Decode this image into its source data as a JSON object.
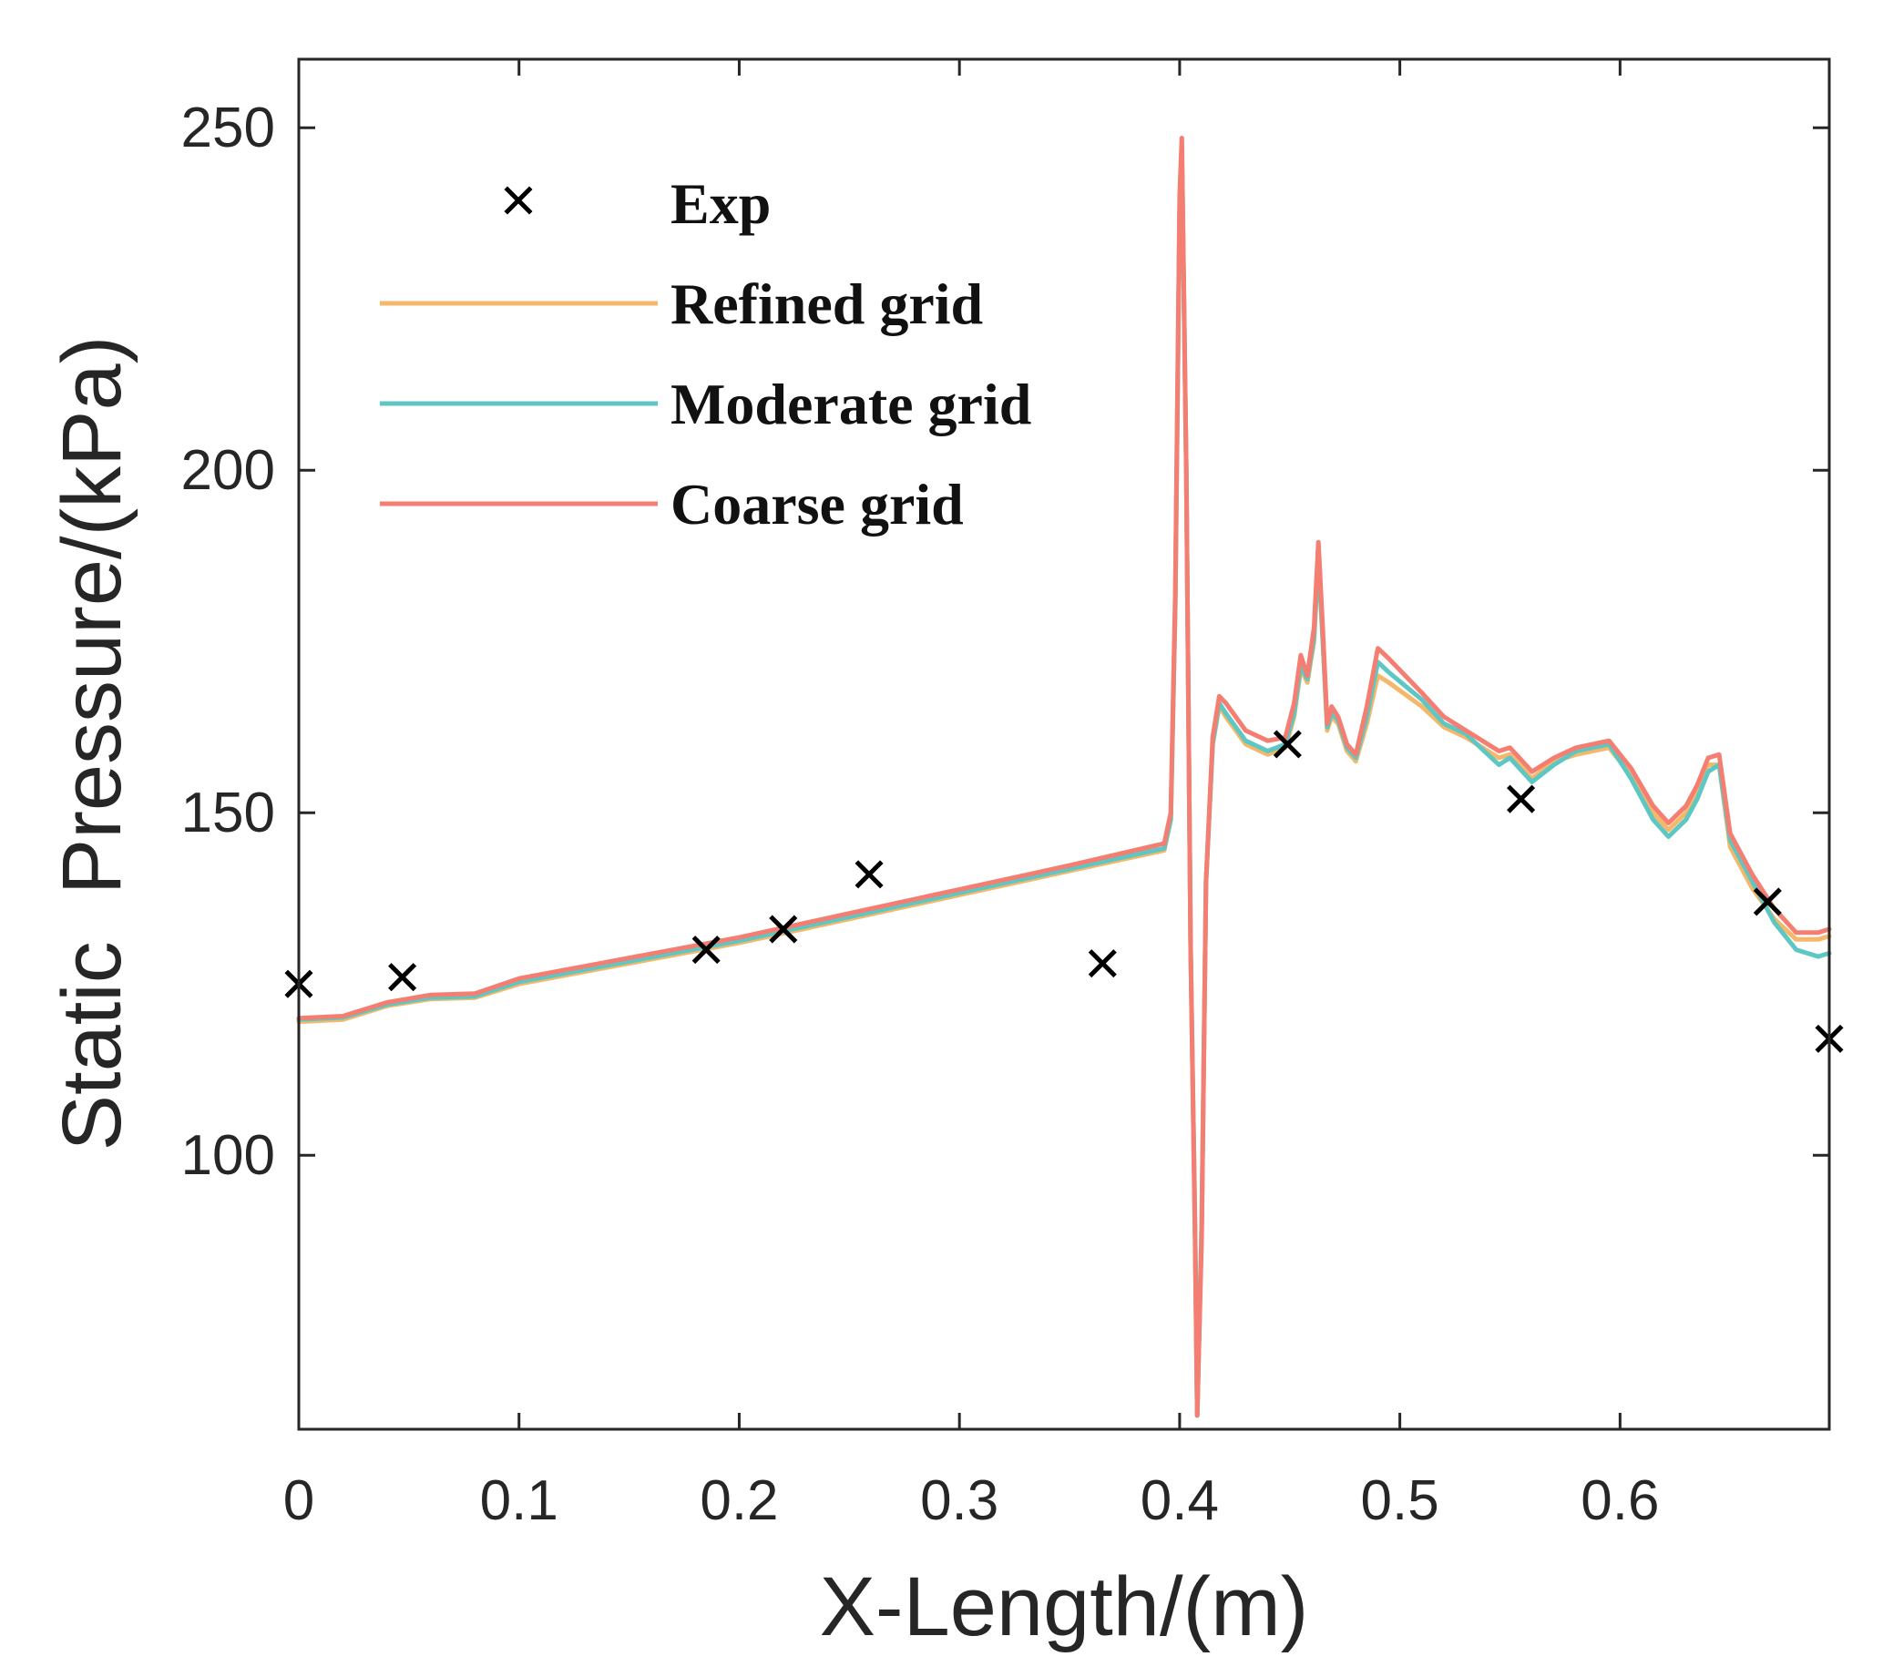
{
  "chart_data": {
    "type": "line",
    "title": "",
    "xlabel": "X-Length/(m)",
    "ylabel": "Static  Pressure/(kPa)",
    "xlim": [
      0,
      0.695
    ],
    "ylim": [
      60,
      260
    ],
    "xticks": [
      0,
      0.1,
      0.2,
      0.3,
      0.4,
      0.5,
      0.6
    ],
    "yticks": [
      100,
      150,
      200,
      250
    ],
    "xtick_labels": [
      "0",
      "0.1",
      "0.2",
      "0.3",
      "0.4",
      "0.5",
      "0.6"
    ],
    "ytick_labels": [
      "100",
      "150",
      "200",
      "250"
    ],
    "grid": false,
    "legend_position": "top-left",
    "scatter": {
      "name": "Exp",
      "marker": "x",
      "color": "#000000",
      "points": [
        [
          0.0,
          125
        ],
        [
          0.047,
          126
        ],
        [
          0.185,
          130
        ],
        [
          0.22,
          133
        ],
        [
          0.259,
          141
        ],
        [
          0.365,
          128
        ],
        [
          0.449,
          160
        ],
        [
          0.555,
          152
        ],
        [
          0.667,
          137
        ],
        [
          0.695,
          117
        ]
      ]
    },
    "series": [
      {
        "name": "Refined grid",
        "color": "#f5b86a",
        "points": [
          [
            0,
            119.5
          ],
          [
            0.02,
            119.8
          ],
          [
            0.04,
            121.8
          ],
          [
            0.06,
            122.8
          ],
          [
            0.08,
            123.0
          ],
          [
            0.1,
            125.0
          ],
          [
            0.15,
            128.0
          ],
          [
            0.2,
            131.0
          ],
          [
            0.25,
            134.5
          ],
          [
            0.3,
            138.0
          ],
          [
            0.35,
            141.5
          ],
          [
            0.393,
            144.5
          ],
          [
            0.396,
            149
          ],
          [
            0.398,
            180
          ],
          [
            0.4,
            238
          ],
          [
            0.401,
            247
          ],
          [
            0.403,
            200
          ],
          [
            0.405,
            130
          ],
          [
            0.407,
            90
          ],
          [
            0.408,
            62
          ],
          [
            0.41,
            90
          ],
          [
            0.412,
            140
          ],
          [
            0.415,
            160
          ],
          [
            0.418,
            165.5
          ],
          [
            0.421,
            164
          ],
          [
            0.43,
            160
          ],
          [
            0.44,
            158.5
          ],
          [
            0.448,
            159.5
          ],
          [
            0.452,
            164
          ],
          [
            0.455,
            171
          ],
          [
            0.458,
            169
          ],
          [
            0.461,
            175
          ],
          [
            0.463,
            187
          ],
          [
            0.465,
            175
          ],
          [
            0.467,
            162
          ],
          [
            0.469,
            164
          ],
          [
            0.472,
            163
          ],
          [
            0.476,
            159
          ],
          [
            0.48,
            157.5
          ],
          [
            0.485,
            163
          ],
          [
            0.49,
            170
          ],
          [
            0.495,
            169
          ],
          [
            0.51,
            165.5
          ],
          [
            0.52,
            162.5
          ],
          [
            0.53,
            161
          ],
          [
            0.54,
            159
          ],
          [
            0.545,
            158
          ],
          [
            0.55,
            158.5
          ],
          [
            0.56,
            155
          ],
          [
            0.57,
            157.5
          ],
          [
            0.58,
            158.5
          ],
          [
            0.595,
            159.5
          ],
          [
            0.605,
            155.5
          ],
          [
            0.615,
            150
          ],
          [
            0.622,
            147.5
          ],
          [
            0.63,
            150
          ],
          [
            0.635,
            153
          ],
          [
            0.64,
            157
          ],
          [
            0.645,
            157
          ],
          [
            0.65,
            145
          ],
          [
            0.66,
            139
          ],
          [
            0.67,
            134.5
          ],
          [
            0.68,
            131.5
          ],
          [
            0.69,
            131.5
          ],
          [
            0.695,
            132
          ]
        ]
      },
      {
        "name": "Moderate grid",
        "color": "#5ec7c3",
        "points": [
          [
            0,
            119.8
          ],
          [
            0.02,
            120.1
          ],
          [
            0.04,
            122.0
          ],
          [
            0.06,
            123.0
          ],
          [
            0.08,
            123.2
          ],
          [
            0.1,
            125.3
          ],
          [
            0.15,
            128.3
          ],
          [
            0.2,
            131.3
          ],
          [
            0.25,
            134.8
          ],
          [
            0.3,
            138.3
          ],
          [
            0.35,
            141.8
          ],
          [
            0.393,
            144.8
          ],
          [
            0.396,
            149
          ],
          [
            0.398,
            180
          ],
          [
            0.4,
            238
          ],
          [
            0.401,
            247
          ],
          [
            0.403,
            200
          ],
          [
            0.405,
            130
          ],
          [
            0.407,
            90
          ],
          [
            0.408,
            62
          ],
          [
            0.41,
            90
          ],
          [
            0.412,
            140
          ],
          [
            0.415,
            160
          ],
          [
            0.418,
            166
          ],
          [
            0.421,
            164.5
          ],
          [
            0.43,
            160.5
          ],
          [
            0.44,
            159
          ],
          [
            0.448,
            160
          ],
          [
            0.452,
            164.5
          ],
          [
            0.455,
            171.5
          ],
          [
            0.458,
            169.5
          ],
          [
            0.461,
            175.5
          ],
          [
            0.463,
            187.5
          ],
          [
            0.465,
            175.5
          ],
          [
            0.467,
            162.5
          ],
          [
            0.469,
            164.5
          ],
          [
            0.472,
            163.5
          ],
          [
            0.476,
            159.5
          ],
          [
            0.48,
            158
          ],
          [
            0.485,
            164
          ],
          [
            0.49,
            172
          ],
          [
            0.495,
            170.5
          ],
          [
            0.51,
            166.5
          ],
          [
            0.52,
            163
          ],
          [
            0.53,
            161.5
          ],
          [
            0.54,
            158.5
          ],
          [
            0.545,
            157
          ],
          [
            0.55,
            158
          ],
          [
            0.56,
            154.5
          ],
          [
            0.57,
            157
          ],
          [
            0.58,
            159
          ],
          [
            0.595,
            160
          ],
          [
            0.605,
            155
          ],
          [
            0.615,
            149
          ],
          [
            0.622,
            146.5
          ],
          [
            0.63,
            149
          ],
          [
            0.635,
            152
          ],
          [
            0.64,
            156
          ],
          [
            0.645,
            157
          ],
          [
            0.65,
            146
          ],
          [
            0.66,
            140
          ],
          [
            0.67,
            134
          ],
          [
            0.68,
            130
          ],
          [
            0.69,
            129
          ],
          [
            0.695,
            129.5
          ]
        ]
      },
      {
        "name": "Coarse grid",
        "color": "#f47e72",
        "points": [
          [
            0,
            120.0
          ],
          [
            0.02,
            120.3
          ],
          [
            0.04,
            122.3
          ],
          [
            0.06,
            123.4
          ],
          [
            0.08,
            123.6
          ],
          [
            0.1,
            125.8
          ],
          [
            0.15,
            128.8
          ],
          [
            0.2,
            131.8
          ],
          [
            0.25,
            135.3
          ],
          [
            0.3,
            138.8
          ],
          [
            0.35,
            142.3
          ],
          [
            0.393,
            145.5
          ],
          [
            0.396,
            150
          ],
          [
            0.398,
            182
          ],
          [
            0.4,
            240
          ],
          [
            0.401,
            248.5
          ],
          [
            0.403,
            200
          ],
          [
            0.405,
            130
          ],
          [
            0.407,
            88
          ],
          [
            0.408,
            62
          ],
          [
            0.41,
            88
          ],
          [
            0.412,
            140
          ],
          [
            0.415,
            161
          ],
          [
            0.418,
            167
          ],
          [
            0.421,
            166
          ],
          [
            0.43,
            162
          ],
          [
            0.44,
            160.5
          ],
          [
            0.448,
            161
          ],
          [
            0.452,
            166
          ],
          [
            0.455,
            173
          ],
          [
            0.458,
            170
          ],
          [
            0.461,
            177
          ],
          [
            0.463,
            189.5
          ],
          [
            0.465,
            177
          ],
          [
            0.467,
            163
          ],
          [
            0.469,
            165.5
          ],
          [
            0.472,
            164
          ],
          [
            0.476,
            160
          ],
          [
            0.48,
            158.5
          ],
          [
            0.485,
            165.5
          ],
          [
            0.49,
            174
          ],
          [
            0.495,
            172.5
          ],
          [
            0.51,
            167.5
          ],
          [
            0.52,
            164
          ],
          [
            0.53,
            162
          ],
          [
            0.54,
            160
          ],
          [
            0.545,
            159
          ],
          [
            0.55,
            159.5
          ],
          [
            0.56,
            156
          ],
          [
            0.57,
            158
          ],
          [
            0.58,
            159.5
          ],
          [
            0.595,
            160.5
          ],
          [
            0.605,
            156.5
          ],
          [
            0.615,
            151
          ],
          [
            0.622,
            148.5
          ],
          [
            0.63,
            151
          ],
          [
            0.635,
            154
          ],
          [
            0.64,
            158
          ],
          [
            0.645,
            158.5
          ],
          [
            0.65,
            147
          ],
          [
            0.66,
            141
          ],
          [
            0.67,
            136
          ],
          [
            0.68,
            132.5
          ],
          [
            0.69,
            132.5
          ],
          [
            0.695,
            133
          ]
        ]
      }
    ]
  }
}
